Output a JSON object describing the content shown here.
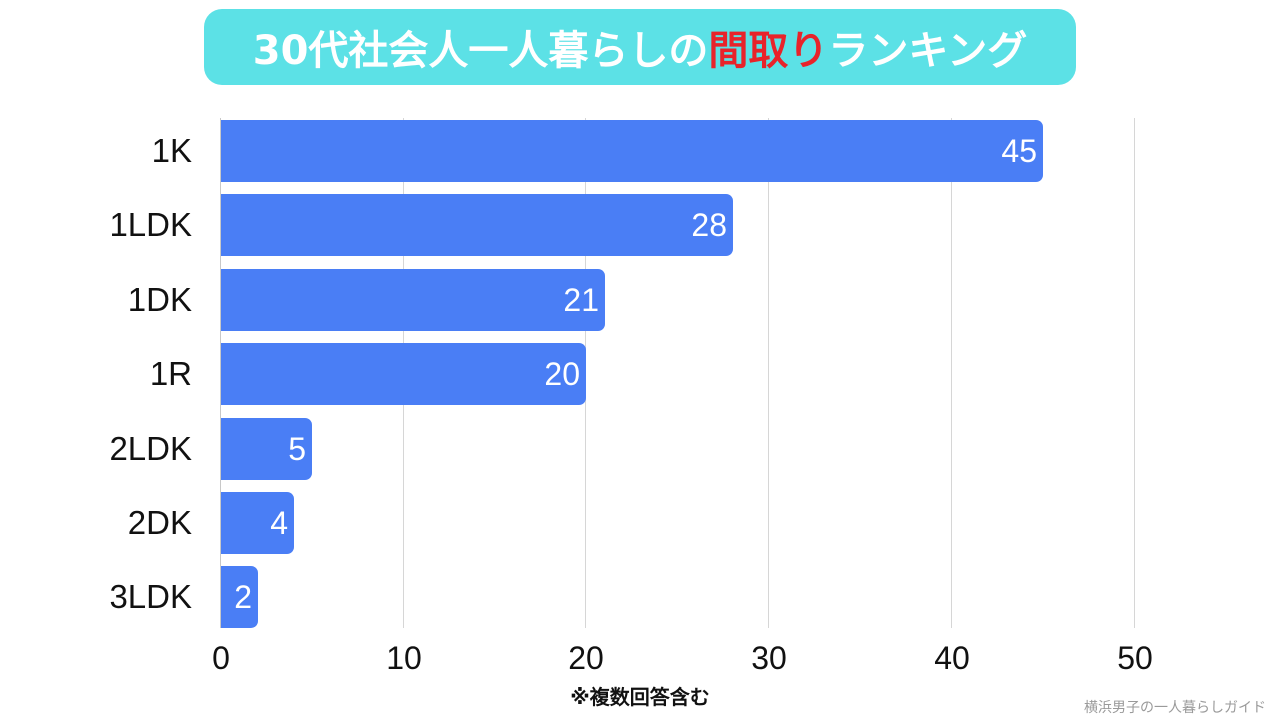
{
  "title": {
    "prefix": "30代社会人一人暮らしの",
    "accent": "間取り",
    "suffix": "ランキング",
    "background_color": "#5ce1e6",
    "accent_color": "#e8232a"
  },
  "note": "※複数回答含む",
  "credit": "横浜男子の一人暮らしガイド",
  "bar_color": "#4a7ef5",
  "chart_data": {
    "type": "bar",
    "orientation": "horizontal",
    "title": "30代社会人一人暮らしの間取りランキング",
    "categories": [
      "1K",
      "1LDK",
      "1DK",
      "1R",
      "2LDK",
      "2DK",
      "3LDK"
    ],
    "values": [
      45,
      28,
      21,
      20,
      5,
      4,
      2
    ],
    "xlabel": "",
    "ylabel": "",
    "xlim": [
      0,
      50
    ],
    "xticks": [
      "0",
      "10",
      "20",
      "30",
      "40",
      "50"
    ],
    "grid": "vertical",
    "data_labels": true,
    "legend": null,
    "annotations": [
      "※複数回答含む",
      "横浜男子の一人暮らしガイド"
    ]
  }
}
